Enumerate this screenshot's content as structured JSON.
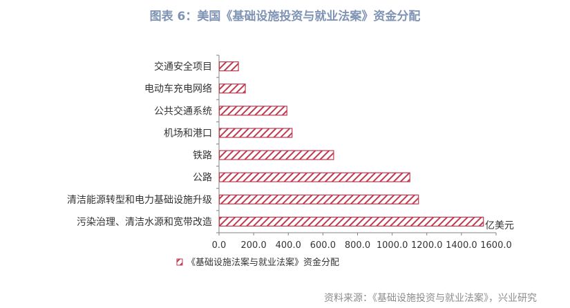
{
  "title": "图表 6：美国《基础设施投资与就业法案》资金分配",
  "source": "资料来源：《基础设施投资与就业法案》，兴业研究",
  "colors": {
    "title": "#7f93b4",
    "bar_stroke": "#c0394f",
    "hatch": "#c0394f",
    "axis": "#808080"
  },
  "chart_data": {
    "type": "bar",
    "orientation": "horizontal",
    "categories": [
      "污染治理、清洁水源和宽带改造",
      "清洁能源转型和电力基础设施升级",
      "公路",
      "铁路",
      "机场和港口",
      "公共交通系统",
      "电动车充电网络",
      "交通安全项目"
    ],
    "series": [
      {
        "name": "《基础设施法案与就业法案》资金分配",
        "values": [
          1525,
          1150,
          1100,
          660,
          420,
          390,
          150,
          110
        ]
      }
    ],
    "xlim": [
      0,
      1600
    ],
    "xticks": [
      "0.0",
      "200.0",
      "400.0",
      "600.0",
      "800.0",
      "1000.0",
      "1200.0",
      "1400.0",
      "1600.0"
    ],
    "unit_label": "亿美元",
    "legend_position": "bottom-left",
    "grid": false
  }
}
